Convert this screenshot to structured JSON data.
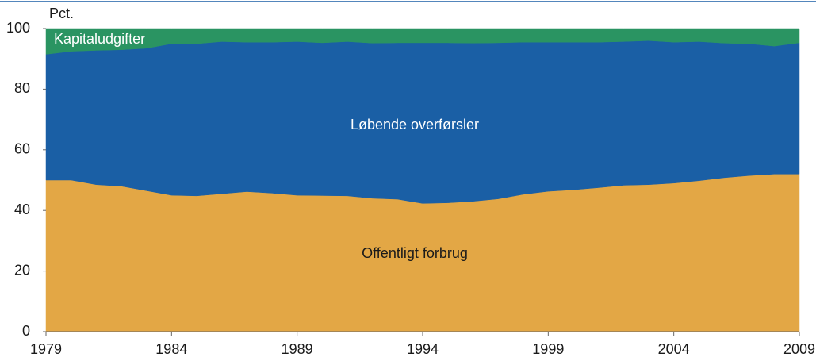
{
  "chart_data": {
    "type": "stacked_area",
    "y_axis_label": "Pct.",
    "x": [
      1979,
      1980,
      1981,
      1982,
      1983,
      1984,
      1985,
      1986,
      1987,
      1988,
      1989,
      1990,
      1991,
      1992,
      1993,
      1994,
      1995,
      1996,
      1997,
      1998,
      1999,
      2000,
      2001,
      2002,
      2003,
      2004,
      2005,
      2006,
      2007,
      2008,
      2009
    ],
    "series": [
      {
        "name": "Offentligt forbrug",
        "color": "#e3a745",
        "values": [
          50,
          50,
          48.5,
          48,
          46.5,
          45,
          44.8,
          45.5,
          46.2,
          45.7,
          45,
          44.9,
          44.8,
          44,
          43.7,
          42.3,
          42.5,
          43,
          43.8,
          45.3,
          46.3,
          46.8,
          47.5,
          48.3,
          48.5,
          49,
          49.8,
          50.8,
          51.5,
          52,
          52
        ]
      },
      {
        "name": "Løbende overførsler",
        "color": "#1a5fa5",
        "values": [
          41.5,
          42.5,
          44.3,
          45,
          47,
          50,
          50.2,
          50.2,
          49.3,
          49.8,
          50.7,
          50.4,
          50.9,
          51.2,
          51.6,
          53,
          52.8,
          52.2,
          51.5,
          50.2,
          49.2,
          48.7,
          48,
          47.4,
          47.5,
          46.5,
          45.9,
          44.4,
          43.5,
          42.2,
          43.3
        ]
      },
      {
        "name": "Kapitaludgifter",
        "color": "#2a9462",
        "values": [
          8.5,
          7.5,
          7.2,
          7,
          6.5,
          5,
          5,
          4.3,
          4.5,
          4.5,
          4.3,
          4.7,
          4.3,
          4.8,
          4.7,
          4.7,
          4.7,
          4.8,
          4.7,
          4.5,
          4.5,
          4.5,
          4.5,
          4.3,
          4,
          4.5,
          4.3,
          4.8,
          5,
          5.8,
          4.7
        ]
      }
    ],
    "xlim": [
      1979,
      2009
    ],
    "xticks": [
      1979,
      1984,
      1989,
      1994,
      1999,
      2004,
      2009
    ],
    "ylim": [
      0,
      100
    ],
    "yticks": [
      0,
      20,
      40,
      60,
      80,
      100
    ]
  }
}
